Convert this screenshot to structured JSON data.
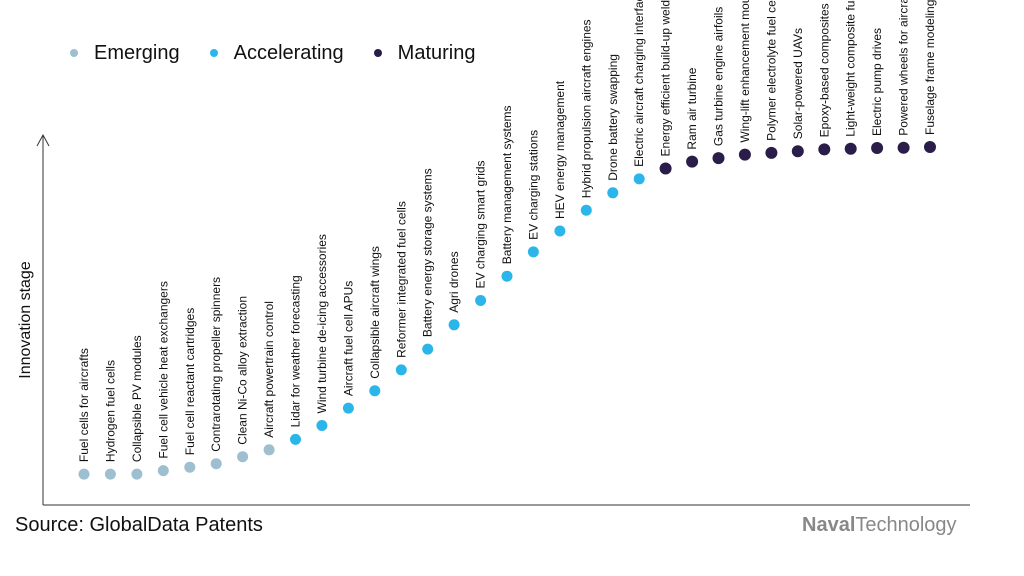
{
  "legend": {
    "items": [
      {
        "label": "Emerging",
        "color": "#9dbfcf"
      },
      {
        "label": "Accelerating",
        "color": "#2ab6ea"
      },
      {
        "label": "Maturing",
        "color": "#2a1d4a"
      }
    ]
  },
  "source": "Source: GlobalData Patents",
  "brand": {
    "bold": "Naval",
    "rest": "Technology"
  },
  "chart_data": {
    "type": "scatter",
    "title": "",
    "xlabel": "",
    "ylabel": "Innovation stage",
    "ylim": [
      0,
      100
    ],
    "grid": false,
    "legend_position": "top-left",
    "points": [
      {
        "label": "Fuel cells for aircrafts",
        "stage": "Emerging",
        "value": 4
      },
      {
        "label": "Hydrogen fuel cells",
        "stage": "Emerging",
        "value": 4
      },
      {
        "label": "Collapsible PV modules",
        "stage": "Emerging",
        "value": 4
      },
      {
        "label": "Fuel cell vehicle heat exchangers",
        "stage": "Emerging",
        "value": 5
      },
      {
        "label": "Fuel cell reactant cartridges",
        "stage": "Emerging",
        "value": 6
      },
      {
        "label": "Contrarotating propeller spinners",
        "stage": "Emerging",
        "value": 7
      },
      {
        "label": "Clean Ni-Co alloy extraction",
        "stage": "Emerging",
        "value": 9
      },
      {
        "label": "Aircraft powertrain control",
        "stage": "Emerging",
        "value": 11
      },
      {
        "label": "Lidar for weather forecasting",
        "stage": "Accelerating",
        "value": 14
      },
      {
        "label": "Wind turbine de-icing accessories",
        "stage": "Accelerating",
        "value": 18
      },
      {
        "label": "Aircraft fuel cell APUs",
        "stage": "Accelerating",
        "value": 23
      },
      {
        "label": "Collapsible aircraft wings",
        "stage": "Accelerating",
        "value": 28
      },
      {
        "label": "Reformer integrated fuel cells",
        "stage": "Accelerating",
        "value": 34
      },
      {
        "label": "Battery energy storage systems",
        "stage": "Accelerating",
        "value": 40
      },
      {
        "label": "Agri drones",
        "stage": "Accelerating",
        "value": 47
      },
      {
        "label": "EV charging smart grids",
        "stage": "Accelerating",
        "value": 54
      },
      {
        "label": "Battery management systems",
        "stage": "Accelerating",
        "value": 61
      },
      {
        "label": "EV charging stations",
        "stage": "Accelerating",
        "value": 68
      },
      {
        "label": "HEV energy management",
        "stage": "Accelerating",
        "value": 74
      },
      {
        "label": "Hybrid propulsion aircraft engines",
        "stage": "Accelerating",
        "value": 80
      },
      {
        "label": "Drone battery swapping",
        "stage": "Accelerating",
        "value": 85
      },
      {
        "label": "Electric aircraft charging interfaces",
        "stage": "Accelerating",
        "value": 89
      },
      {
        "label": "Energy efficient build-up welding",
        "stage": "Maturing",
        "value": 92
      },
      {
        "label": "Ram air turbine",
        "stage": "Maturing",
        "value": 94
      },
      {
        "label": "Gas turbine engine airfoils",
        "stage": "Maturing",
        "value": 95
      },
      {
        "label": "Wing-lift enhancement mountings",
        "stage": "Maturing",
        "value": 96
      },
      {
        "label": "Polymer electrolyte fuel cells",
        "stage": "Maturing",
        "value": 96.5
      },
      {
        "label": "Solar-powered UAVs",
        "stage": "Maturing",
        "value": 97
      },
      {
        "label": "Epoxy-based composites",
        "stage": "Maturing",
        "value": 97.5
      },
      {
        "label": "Light-weight composite fuselage",
        "stage": "Maturing",
        "value": 97.7
      },
      {
        "label": "Electric pump drives",
        "stage": "Maturing",
        "value": 97.9
      },
      {
        "label": "Powered wheels for aircraft landing",
        "stage": "Maturing",
        "value": 98
      },
      {
        "label": "Fuselage frame modeling",
        "stage": "Maturing",
        "value": 98.2
      }
    ]
  }
}
